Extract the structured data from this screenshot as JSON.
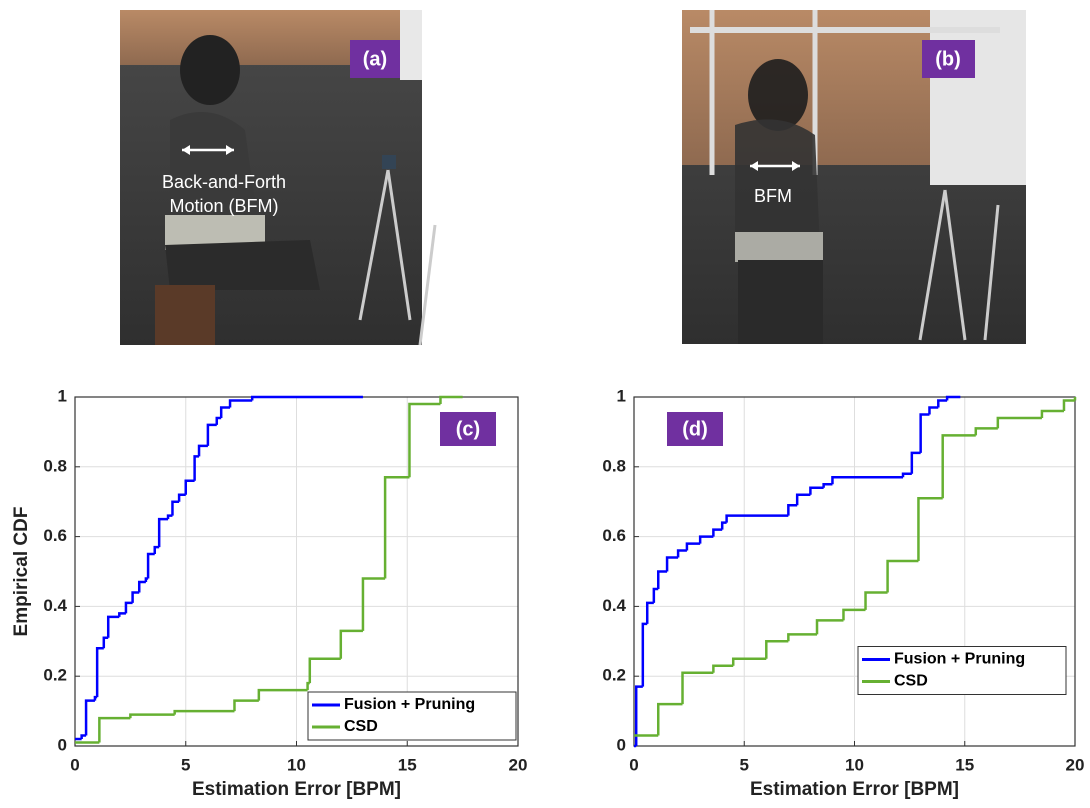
{
  "photos": [
    {
      "label": "(a)",
      "annotation": [
        "Back-and-Forth",
        "Motion (BFM)"
      ]
    },
    {
      "label": "(b)",
      "annotation": [
        "BFM"
      ]
    }
  ],
  "chart_data": [
    {
      "type": "step",
      "label": "(c)",
      "ylabel": "Empirical CDF",
      "xlabel": "Estimation Error [BPM]",
      "xlim": [
        0,
        20
      ],
      "ylim": [
        0,
        1
      ],
      "xticks": [
        0,
        5,
        10,
        15,
        20
      ],
      "yticks": [
        0,
        0.2,
        0.4,
        0.6,
        0.8,
        1
      ],
      "grid": true,
      "legend": "lower right",
      "series": [
        {
          "name": "Fusion + Pruning",
          "color": "#0000ff",
          "x": [
            0,
            0.3,
            0.5,
            0.9,
            1.0,
            1.3,
            1.5,
            2.0,
            2.3,
            2.6,
            2.9,
            3.2,
            3.3,
            3.6,
            3.8,
            4.2,
            4.4,
            4.7,
            5.0,
            5.4,
            5.6,
            6.0,
            6.4,
            6.6,
            7.0,
            8.0,
            13.0
          ],
          "values": [
            0.02,
            0.03,
            0.13,
            0.14,
            0.28,
            0.31,
            0.37,
            0.38,
            0.41,
            0.44,
            0.47,
            0.48,
            0.55,
            0.57,
            0.65,
            0.66,
            0.7,
            0.72,
            0.76,
            0.83,
            0.86,
            0.92,
            0.94,
            0.97,
            0.99,
            1.0,
            1.0
          ]
        },
        {
          "name": "CSD",
          "color": "#66b032",
          "x": [
            0,
            1.1,
            2.5,
            4.5,
            7.2,
            8.3,
            10.5,
            10.6,
            12.0,
            13.0,
            14.0,
            15.1,
            16.5,
            17.5
          ],
          "values": [
            0.01,
            0.08,
            0.09,
            0.1,
            0.13,
            0.16,
            0.18,
            0.25,
            0.33,
            0.48,
            0.77,
            0.98,
            1.0,
            1.0
          ]
        }
      ]
    },
    {
      "type": "step",
      "label": "(d)",
      "xlabel": "Estimation Error [BPM]",
      "xlim": [
        0,
        20
      ],
      "ylim": [
        0,
        1
      ],
      "xticks": [
        0,
        5,
        10,
        15,
        20
      ],
      "yticks": [
        0,
        0.2,
        0.4,
        0.6,
        0.8,
        1
      ],
      "grid": true,
      "legend": "center right",
      "series": [
        {
          "name": "Fusion + Pruning",
          "color": "#0000ff",
          "x": [
            0,
            0.1,
            0.4,
            0.6,
            0.9,
            1.1,
            1.5,
            2.0,
            2.4,
            3.0,
            3.6,
            4.0,
            4.2,
            7.0,
            7.4,
            8.0,
            8.6,
            9.0,
            12.2,
            12.6,
            13.0,
            13.4,
            13.8,
            14.2,
            14.8
          ],
          "values": [
            0,
            0.17,
            0.35,
            0.41,
            0.45,
            0.5,
            0.54,
            0.56,
            0.58,
            0.6,
            0.62,
            0.64,
            0.66,
            0.69,
            0.72,
            0.74,
            0.75,
            0.77,
            0.78,
            0.84,
            0.95,
            0.97,
            0.99,
            1.0,
            1.0
          ]
        },
        {
          "name": "CSD",
          "color": "#66b032",
          "x": [
            0,
            1.1,
            2.2,
            3.6,
            4.5,
            6.0,
            7.0,
            8.3,
            9.5,
            10.5,
            11.5,
            12.9,
            14.0,
            15.5,
            16.5,
            18.5,
            19.5,
            20
          ],
          "values": [
            0.03,
            0.12,
            0.21,
            0.23,
            0.25,
            0.3,
            0.32,
            0.36,
            0.39,
            0.44,
            0.53,
            0.71,
            0.89,
            0.91,
            0.94,
            0.96,
            0.99,
            1.0
          ]
        }
      ]
    }
  ]
}
